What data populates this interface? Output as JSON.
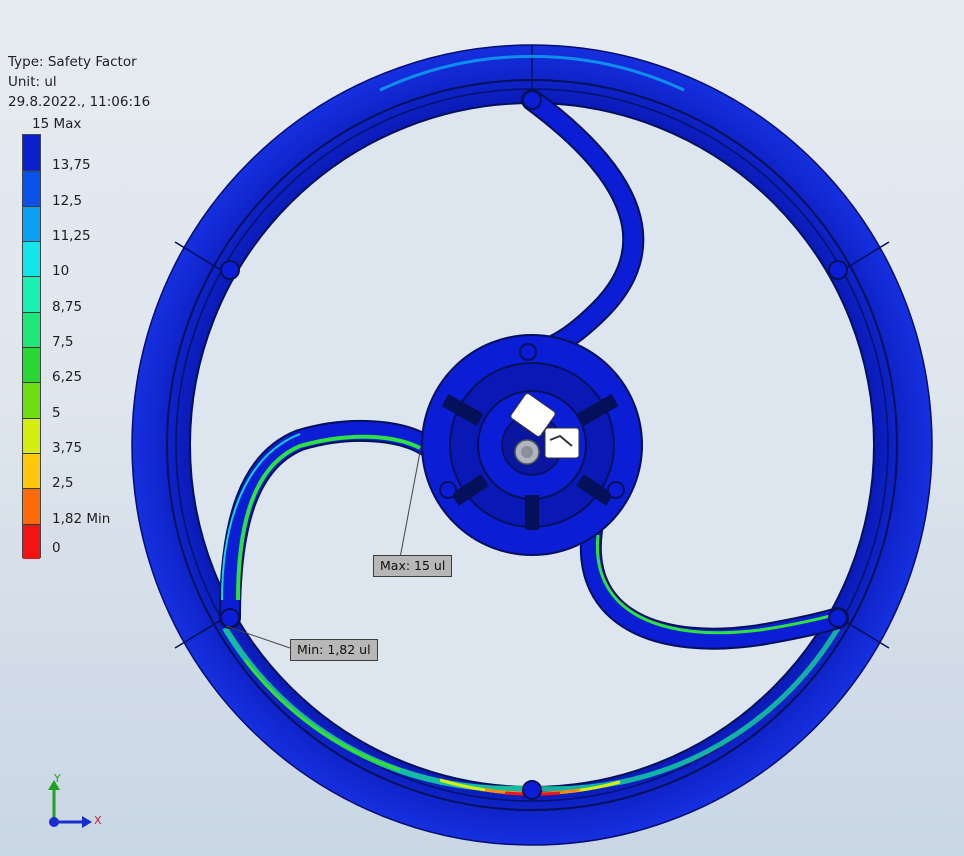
{
  "legend": {
    "type_line": "Type: Safety Factor",
    "unit_line": "Unit: ul",
    "datetime_line": "29.8.2022., 11:06:16",
    "max_label": "15 Max",
    "min_label": "1,82 Min",
    "ticks": [
      "15 Max",
      "13,75",
      "12,5",
      "11,25",
      "10",
      "8,75",
      "7,5",
      "6,25",
      "5",
      "3,75",
      "2,5",
      "1,82 Min",
      "0"
    ],
    "colors": [
      "#0a1fd0",
      "#0a50ea",
      "#0aa0f4",
      "#12e6ea",
      "#19f0b2",
      "#1ee87c",
      "#2bd832",
      "#6fdc14",
      "#d4ee12",
      "#ffc80a",
      "#ff6a0a",
      "#f41414"
    ]
  },
  "probes": {
    "max": "Max: 15 ul",
    "min": "Min: 1,82 ul"
  },
  "triad": {
    "y_axis": "Y",
    "x_axis": "X"
  },
  "colors": {
    "model_blue": "#0b1ed6",
    "background_top": "#e6ebf1",
    "background_bottom": "#c9d6e4"
  }
}
